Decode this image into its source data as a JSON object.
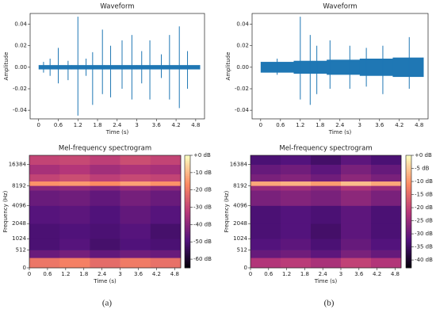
{
  "chart_data": [
    {
      "type": "waveform",
      "title": "Waveform",
      "xlabel": "Time (s)",
      "ylabel": "Amplitude",
      "color": "#1f77b4",
      "xlim": [
        -0.26,
        5.07
      ],
      "ylim": [
        -0.048,
        0.05
      ],
      "xticks": [
        0,
        0.6,
        1.2,
        1.8,
        2.4,
        3,
        3.6,
        4.2,
        4.8
      ],
      "yticks": [
        -0.04,
        -0.02,
        {
          "value": 0,
          "label": "0.00"
        },
        0.02,
        0.04
      ],
      "envelope": {
        "x": [
          0,
          1,
          2,
          3,
          4,
          4.9
        ],
        "values": [
          0.002,
          0.002,
          0.002,
          0.002,
          0.002,
          0.002
        ]
      },
      "spikes": {
        "x": [
          0.15,
          0.35,
          0.6,
          0.9,
          1.2,
          1.45,
          1.65,
          1.95,
          2.2,
          2.55,
          2.85,
          3.15,
          3.4,
          3.75,
          4.0,
          4.3,
          4.55
        ],
        "highs": [
          0.005,
          0.008,
          0.018,
          0.006,
          0.047,
          0.008,
          0.014,
          0.035,
          0.02,
          0.025,
          0.03,
          0.015,
          0.025,
          0.012,
          0.03,
          0.038,
          0.015
        ],
        "lows": [
          -0.005,
          -0.008,
          -0.015,
          -0.012,
          -0.045,
          -0.008,
          -0.035,
          -0.025,
          -0.028,
          -0.02,
          -0.03,
          -0.015,
          -0.03,
          -0.01,
          -0.03,
          -0.038,
          -0.02
        ]
      }
    },
    {
      "type": "heatmap",
      "title": "Mel-frequency spectrogram",
      "xlabel": "Time (s)",
      "ylabel": "Frequency (Hz)",
      "colormap": "magma",
      "yscale": "mel",
      "xlim": [
        0,
        5
      ],
      "ylim": [
        0,
        22050
      ],
      "xticks": [
        0,
        0.6,
        1.2,
        1.8,
        2.4,
        3,
        3.6,
        4.2,
        4.8
      ],
      "yticks": [
        0,
        512,
        1024,
        2048,
        4096,
        8192,
        16384
      ],
      "x_bins": [
        0,
        1,
        2,
        3,
        4,
        5
      ],
      "y_bins": [
        0,
        256,
        512,
        1024,
        2048,
        4096,
        7000,
        8192,
        9500,
        12000,
        16384,
        22050
      ],
      "z": [
        [
          -20,
          -18,
          -22,
          -19,
          -21
        ],
        [
          -45,
          -43,
          -46,
          -44,
          -45
        ],
        [
          -50,
          -48,
          -51,
          -49,
          -50
        ],
        [
          -50,
          -49,
          -50,
          -48,
          -51
        ],
        [
          -48,
          -47,
          -49,
          -46,
          -48
        ],
        [
          -45,
          -44,
          -46,
          -43,
          -45
        ],
        [
          -40,
          -39,
          -41,
          -38,
          -40
        ],
        [
          -15,
          -14,
          -16,
          -13,
          -15
        ],
        [
          -30,
          -28,
          -31,
          -29,
          -30
        ],
        [
          -35,
          -33,
          -36,
          -34,
          -35
        ],
        [
          -30,
          -29,
          -31,
          -28,
          -30
        ]
      ],
      "clim": [
        -65,
        0
      ],
      "cticks": [
        {
          "value": 0,
          "label": "+0 dB"
        },
        {
          "value": -10,
          "label": "-10 dB"
        },
        {
          "value": -20,
          "label": "-20 dB"
        },
        {
          "value": -30,
          "label": "-30 dB"
        },
        {
          "value": -40,
          "label": "-40 dB"
        },
        {
          "value": -50,
          "label": "-50 dB"
        },
        {
          "value": -60,
          "label": "-60 dB"
        }
      ]
    },
    {
      "type": "waveform",
      "title": "Waveform",
      "xlabel": "Time (s)",
      "ylabel": "Amplitude",
      "color": "#1f77b4",
      "xlim": [
        -0.26,
        5.07
      ],
      "ylim": [
        -0.048,
        0.05
      ],
      "xticks": [
        0,
        0.6,
        1.2,
        1.8,
        2.4,
        3,
        3.6,
        4.2,
        4.8
      ],
      "yticks": [
        -0.04,
        -0.02,
        {
          "value": 0,
          "label": "0.00"
        },
        0.02,
        0.04
      ],
      "envelope": {
        "x": [
          0,
          1,
          2,
          3,
          4,
          4.9
        ],
        "values": [
          0.005,
          0.006,
          0.007,
          0.008,
          0.009,
          0.009
        ]
      },
      "spikes": {
        "x": [
          0.5,
          1.2,
          1.5,
          1.7,
          2.1,
          2.7,
          3.2,
          3.7,
          4.5
        ],
        "highs": [
          0.008,
          0.047,
          0.03,
          0.02,
          0.025,
          0.02,
          0.018,
          0.02,
          0.028
        ],
        "lows": [
          -0.007,
          -0.03,
          -0.035,
          -0.025,
          -0.02,
          -0.02,
          -0.018,
          -0.025,
          -0.02
        ]
      }
    },
    {
      "type": "heatmap",
      "title": "Mel-frequency spectrogram",
      "xlabel": "Time (s)",
      "ylabel": "Frequency (Hz)",
      "colormap": "magma",
      "yscale": "mel",
      "xlim": [
        0,
        5
      ],
      "ylim": [
        0,
        22050
      ],
      "xticks": [
        0,
        0.6,
        1.2,
        1.8,
        2.4,
        3,
        3.6,
        4.2,
        4.8
      ],
      "yticks": [
        0,
        512,
        1024,
        2048,
        4096,
        8192,
        16384
      ],
      "x_bins": [
        0,
        1,
        2,
        3,
        4,
        5
      ],
      "y_bins": [
        0,
        256,
        512,
        1024,
        2048,
        4096,
        7000,
        8192,
        9500,
        12000,
        16384,
        22050
      ],
      "z": [
        [
          -22,
          -21,
          -23,
          -20,
          -22
        ],
        [
          -30,
          -29,
          -31,
          -28,
          -30
        ],
        [
          -32,
          -31,
          -33,
          -30,
          -32
        ],
        [
          -33,
          -32,
          -34,
          -31,
          -33
        ],
        [
          -33,
          -32,
          -33,
          -31,
          -33
        ],
        [
          -28,
          -27,
          -28,
          -26,
          -28
        ],
        [
          -25,
          -24,
          -26,
          -23,
          -25
        ],
        [
          -8,
          -7,
          -9,
          -6,
          -8
        ],
        [
          -28,
          -27,
          -29,
          -26,
          -28
        ],
        [
          -30,
          -29,
          -31,
          -28,
          -30
        ],
        [
          -33,
          -32,
          -34,
          -31,
          -33
        ]
      ],
      "clim": [
        -43,
        0
      ],
      "cticks": [
        {
          "value": 0,
          "label": "+0 dB"
        },
        {
          "value": -5,
          "label": "-5 dB"
        },
        {
          "value": -10,
          "label": "-10 dB"
        },
        {
          "value": -15,
          "label": "-15 dB"
        },
        {
          "value": -20,
          "label": "-20 dB"
        },
        {
          "value": -25,
          "label": "-25 dB"
        },
        {
          "value": -30,
          "label": "-30 dB"
        },
        {
          "value": -35,
          "label": "-35 dB"
        },
        {
          "value": -40,
          "label": "-40 dB"
        }
      ]
    }
  ],
  "captions": [
    "(a)",
    "(b)"
  ]
}
